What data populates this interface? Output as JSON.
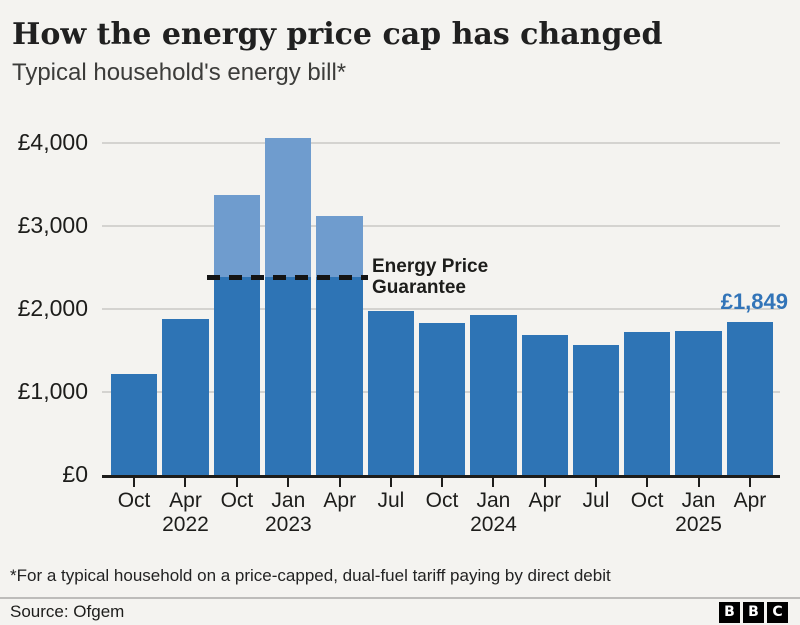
{
  "header": {
    "title": "How the energy price cap has changed",
    "subtitle": "Typical household's energy bill*"
  },
  "chart_data": {
    "type": "bar",
    "title": "How the energy price cap has changed",
    "subtitle": "Typical household's energy bill*",
    "categories": [
      "Oct",
      "Apr",
      "Oct",
      "Jan",
      "Apr",
      "Jul",
      "Oct",
      "Jan",
      "Apr",
      "Jul",
      "Oct",
      "Jan",
      "Apr"
    ],
    "year_labels": [
      "",
      "2022",
      "",
      "2023",
      "",
      "",
      "",
      "2024",
      "",
      "",
      "",
      "2025",
      ""
    ],
    "values": [
      1216,
      1880,
      3372,
      4059,
      3116,
      1976,
      1834,
      1928,
      1690,
      1568,
      1717,
      1738,
      1849
    ],
    "xlabel": "",
    "ylabel": "",
    "ylim": [
      0,
      4300
    ],
    "yticks": [
      0,
      1000,
      2000,
      3000,
      4000
    ],
    "ytick_labels": [
      "£0",
      "£1,000",
      "£2,000",
      "£3,000",
      "£4,000"
    ],
    "grid": "horizontal",
    "legend": "none",
    "annotation": {
      "label": "Energy Price Guarantee",
      "value": 2380,
      "style": "black dashed horizontal line",
      "covers_categories": [
        "Oct 2022",
        "Jan 2023",
        "Apr 2023"
      ]
    },
    "end_label": "£1,849",
    "colors": {
      "bar": "#2e74b5",
      "bar_above_guarantee": "#6f9cce",
      "end_label": "#3274b8"
    }
  },
  "footer": {
    "footnote": "*For a typical household on a price-capped, dual-fuel tariff paying by direct debit",
    "source": "Source: Ofgem",
    "logo_letters": [
      "B",
      "B",
      "C"
    ]
  }
}
